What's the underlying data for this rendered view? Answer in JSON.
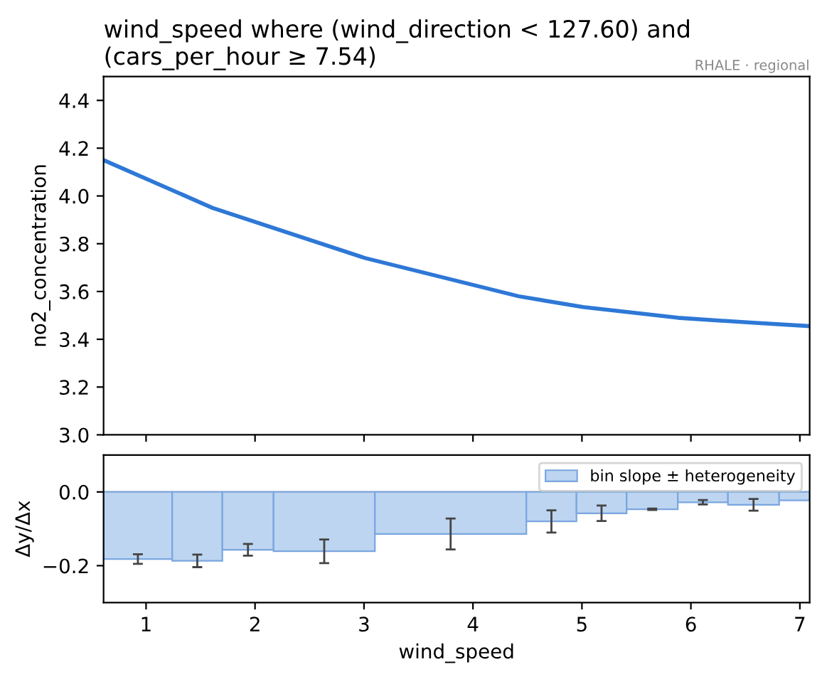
{
  "chart_data": [
    {
      "type": "line",
      "title": "wind_speed where (wind_direction < 127.60) and\n(cars_per_hour ≥ 7.54)",
      "ylabel": "no2_concentration",
      "annotations": [
        "RHALE · regional"
      ],
      "x": [
        0.61,
        1.61,
        3.01,
        4.42,
        5.01,
        5.88,
        6.54,
        7.09
      ],
      "series": [
        {
          "color": "#2e78d6",
          "values": [
            4.15,
            3.95,
            3.74,
            3.58,
            3.535,
            3.49,
            3.47,
            3.455
          ]
        }
      ],
      "xlim": [
        0.61,
        7.09
      ],
      "xticks": [
        1,
        2,
        3,
        4,
        5,
        6,
        7
      ],
      "ylim": [
        3.0,
        4.5
      ],
      "yticks": [
        {
          "value": 3,
          "label": "3.0"
        },
        3.2,
        3.4,
        3.6,
        3.8,
        {
          "value": 4,
          "label": "4.0"
        },
        4.2,
        4.4
      ],
      "tick_labels": "y",
      "grid": false,
      "legend": false
    },
    {
      "type": "histogram",
      "xlabel": "wind_speed",
      "ylabel": "Δy/Δx",
      "bins": [
        0.61,
        1.24,
        1.7,
        2.17,
        3.1,
        4.49,
        4.95,
        5.41,
        5.88,
        6.34,
        6.81,
        7.09
      ],
      "series": [
        {
          "name": "bin slope ± heterogeneity",
          "color": "#bdd5f0",
          "values": [
            -0.182,
            -0.187,
            -0.157,
            -0.161,
            -0.114,
            -0.08,
            -0.058,
            -0.047,
            -0.028,
            -0.035,
            -0.023
          ],
          "errors": [
            0.013,
            0.017,
            0.016,
            0.032,
            0.042,
            0.03,
            0.021,
            0.002,
            0.006,
            0.016,
            null
          ]
        }
      ],
      "ref_lines": [
        {
          "axis": "y",
          "value": 0,
          "color": "#cccccc"
        }
      ],
      "xlim": [
        0.61,
        7.09
      ],
      "xticks": [
        1,
        2,
        3,
        4,
        5,
        6,
        7
      ],
      "ylim": [
        -0.3,
        0.1
      ],
      "yticks": [
        {
          "value": 0,
          "label": "0.0"
        },
        {
          "value": -0.2,
          "label": "−0.2"
        }
      ],
      "legend": "top right",
      "grid": false
    }
  ]
}
